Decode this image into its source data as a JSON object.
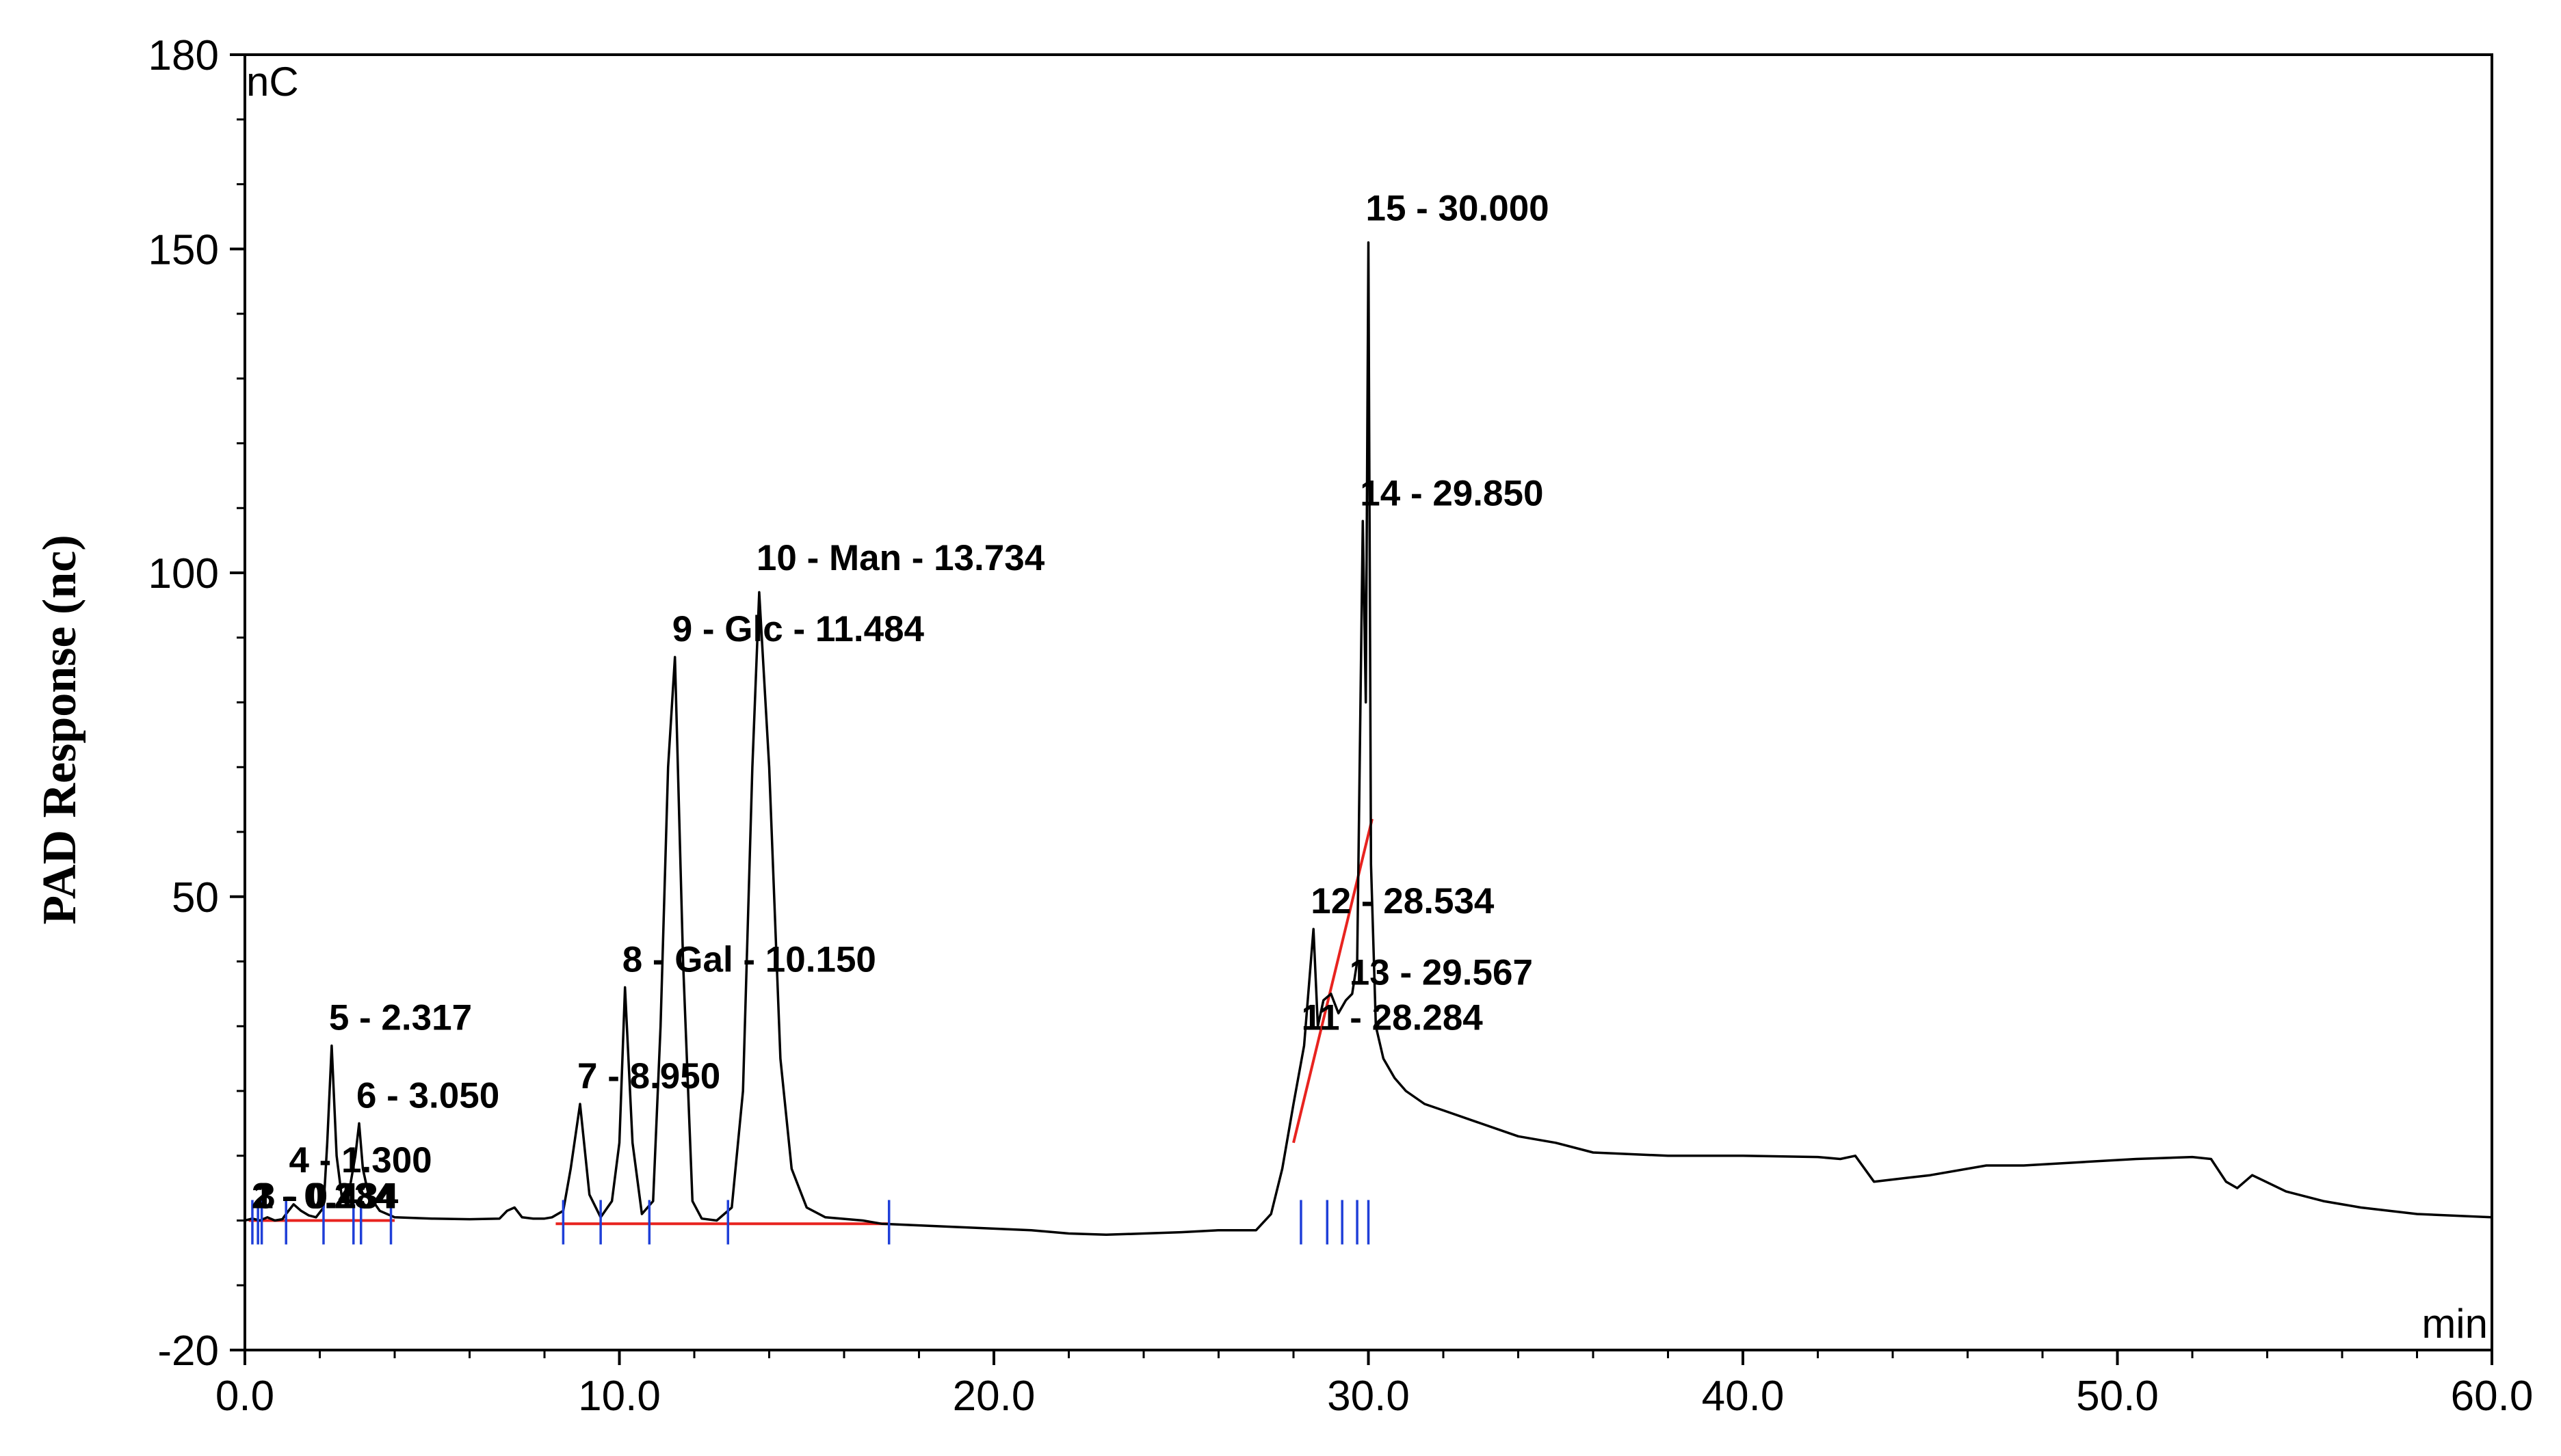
{
  "chart_data": {
    "type": "line",
    "ylabel": "PAD Response (nc)",
    "y_unit_label": "nC",
    "x_unit_label": "min",
    "xlim": [
      0,
      60
    ],
    "ylim": [
      -20,
      180
    ],
    "x_ticks": [
      {
        "value": 0,
        "label": "0.0"
      },
      {
        "value": 10,
        "label": "10.0"
      },
      {
        "value": 20,
        "label": "20.0"
      },
      {
        "value": 30,
        "label": "30.0"
      },
      {
        "value": 40,
        "label": "40.0"
      },
      {
        "value": 50,
        "label": "50.0"
      },
      {
        "value": 60,
        "label": "60.0"
      }
    ],
    "y_ticks": [
      {
        "value": -20,
        "label": "-20"
      },
      {
        "value": 50,
        "label": "50"
      },
      {
        "value": 100,
        "label": "100"
      },
      {
        "value": 150,
        "label": "150"
      },
      {
        "value": 180,
        "label": "180"
      }
    ],
    "grid": false,
    "colors": {
      "trace": "#000000",
      "baseline": "#e8231f",
      "markers": "#1f3fd8"
    },
    "series": [
      {
        "x": [
          0,
          0.2,
          0.4,
          0.6,
          0.8,
          1.0,
          1.1,
          1.3,
          1.5,
          1.7,
          1.9,
          2.1,
          2.2,
          2.317,
          2.45,
          2.6,
          2.8,
          2.95,
          3.05,
          3.15,
          3.3,
          3.6,
          4.0,
          5.0,
          6.0,
          6.8,
          7.0,
          7.2,
          7.4,
          7.7,
          8.0,
          8.2,
          8.5,
          8.7,
          8.95,
          9.2,
          9.5,
          9.8,
          10.0,
          10.15,
          10.35,
          10.6,
          10.9,
          11.1,
          11.3,
          11.484,
          11.7,
          11.95,
          12.2,
          12.6,
          13.0,
          13.3,
          13.55,
          13.734,
          14.0,
          14.3,
          14.6,
          15.0,
          15.5,
          16.5,
          17.0,
          19.0,
          21.0,
          22.0,
          23.0,
          24.0,
          25.0,
          26.0,
          27.0,
          27.4,
          27.7,
          28.0,
          28.284,
          28.534,
          28.65,
          28.8,
          29.0,
          29.2,
          29.4,
          29.567,
          29.7,
          29.85,
          29.93,
          30.0,
          30.07,
          30.2,
          30.4,
          30.7,
          31.0,
          31.5,
          32.0,
          33.0,
          34.0,
          35.0,
          36.0,
          38.0,
          40.0,
          42.0,
          42.6,
          43.0,
          43.5,
          45.0,
          46.5,
          47.5,
          49.0,
          50.5,
          52.0,
          52.5,
          52.9,
          53.2,
          53.6,
          54.5,
          55.5,
          56.5,
          58.0,
          60.0
        ],
        "y": [
          0,
          0.3,
          0,
          0.5,
          0,
          0.2,
          1.0,
          2.5,
          1.5,
          0.8,
          0.5,
          2,
          12,
          27,
          10,
          3,
          5,
          10,
          15,
          8,
          4,
          1.5,
          0.5,
          0.3,
          0.2,
          0.3,
          1.5,
          2,
          0.5,
          0.3,
          0.3,
          0.5,
          1.5,
          8,
          18,
          4,
          0.5,
          3,
          12,
          36,
          12,
          1,
          3,
          30,
          70,
          87,
          40,
          3,
          0.3,
          0,
          2,
          20,
          70,
          97,
          70,
          25,
          8,
          2,
          0.5,
          0,
          -0.5,
          -1,
          -1.5,
          -2,
          -2.2,
          -2.0,
          -1.8,
          -1.5,
          -1.5,
          1,
          8,
          18,
          27,
          45,
          30,
          34,
          35,
          32,
          34,
          35,
          40,
          108,
          80,
          151,
          55,
          30,
          25,
          22,
          20,
          18,
          17,
          15,
          13,
          12,
          10.5,
          10,
          10,
          9.8,
          9.5,
          10,
          6,
          7,
          8.5,
          8.5,
          9,
          9.5,
          9.8,
          9.5,
          6,
          5,
          7,
          4.5,
          3,
          2,
          1,
          0.5
        ]
      }
    ],
    "baselines": [
      {
        "x": [
          0.1,
          4.0
        ],
        "y": [
          0,
          0
        ]
      },
      {
        "x": [
          8.3,
          17.2
        ],
        "y": [
          -0.5,
          -0.5
        ]
      },
      {
        "x": [
          28.0,
          30.1
        ],
        "y": [
          12,
          62
        ]
      }
    ],
    "marker_positions": [
      0.2,
      0.35,
      0.45,
      1.1,
      2.1,
      2.9,
      3.1,
      3.9,
      8.5,
      9.5,
      10.8,
      12.9,
      17.2,
      28.2,
      28.9,
      29.3,
      29.7,
      30.0
    ],
    "annotations": [
      {
        "text": "2 - 0.234",
        "x": 0.25,
        "y": 1.5
      },
      {
        "text": "3 - 0.434",
        "x": 0.35,
        "y": 1.5
      },
      {
        "text": "1 - 0.184",
        "x": 0.3,
        "y": 1.5
      },
      {
        "text": "4 - 1.300",
        "x": 1.25,
        "y": 7
      },
      {
        "text": "5 - 2.317",
        "x": 2.317,
        "y": 29
      },
      {
        "text": "6 - 3.050",
        "x": 3.05,
        "y": 17
      },
      {
        "text": "7 - 8.950",
        "x": 8.95,
        "y": 20
      },
      {
        "text": "8 - Gal - 10.150",
        "x": 10.15,
        "y": 38
      },
      {
        "text": "9 - Glc - 11.484",
        "x": 11.484,
        "y": 89
      },
      {
        "text": "10 - Man - 13.734",
        "x": 13.734,
        "y": 100
      },
      {
        "text": "11 - 28.284",
        "x": 28.284,
        "y": 29
      },
      {
        "text": "12 - 28.534",
        "x": 28.534,
        "y": 47
      },
      {
        "text": "13 - 29.567",
        "x": 29.567,
        "y": 36
      },
      {
        "text": "14 - 29.850",
        "x": 29.85,
        "y": 110
      },
      {
        "text": "15 - 30.000",
        "x": 30.0,
        "y": 154
      }
    ]
  }
}
